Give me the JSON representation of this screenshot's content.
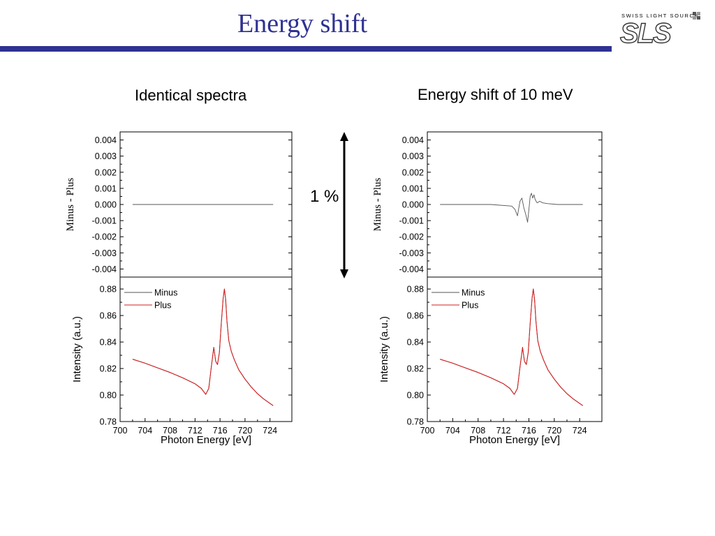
{
  "slide": {
    "title": "Energy shift"
  },
  "logo": {
    "tagline": "SWISS LIGHT SOURCE",
    "wordmark": "SLS"
  },
  "headings": {
    "left": "Identical spectra",
    "right": "Energy shift of 10 meV"
  },
  "scale_marker": {
    "label": "1 %"
  },
  "colors": {
    "title": "#2e3192",
    "minus": "#555555",
    "plus": "#d22020",
    "frame": "#000000"
  },
  "chart_data": [
    {
      "panel": "left-top",
      "type": "line",
      "ylabel": "Minus - Plus",
      "xlim": [
        700,
        727.5
      ],
      "ylim": [
        -0.0045,
        0.0045
      ],
      "yticks": [
        "0.004",
        "0.003",
        "0.002",
        "0.001",
        "0.000",
        "-0.001",
        "-0.002",
        "-0.003",
        "-0.004"
      ],
      "series": [
        {
          "x": [
            702,
            724.5
          ],
          "y": [
            0.0,
            0.0
          ]
        }
      ]
    },
    {
      "panel": "left-bottom",
      "type": "line",
      "xlabel": "Photon Energy [eV]",
      "ylabel": "Intensity (a.u.)",
      "xlim": [
        700,
        727.5
      ],
      "ylim": [
        0.78,
        0.889
      ],
      "xticks": [
        "700",
        "704",
        "708",
        "712",
        "716",
        "720",
        "724"
      ],
      "yticks": [
        "0.88",
        "0.86",
        "0.84",
        "0.82",
        "0.80",
        "0.78"
      ],
      "legend": "top-left",
      "series": [
        {
          "name": "Minus",
          "x": [
            702,
            704,
            706,
            708,
            710,
            712,
            713,
            713.7,
            714.2,
            714.6,
            715.0,
            715.3,
            715.6,
            715.9,
            716.2,
            716.5,
            716.7,
            716.9,
            717.1,
            717.4,
            717.8,
            718.3,
            719.0,
            720.0,
            721.0,
            722.0,
            723.0,
            724.5
          ],
          "y": [
            0.827,
            0.824,
            0.8205,
            0.817,
            0.813,
            0.8085,
            0.805,
            0.8005,
            0.805,
            0.821,
            0.836,
            0.8255,
            0.823,
            0.832,
            0.854,
            0.873,
            0.88,
            0.872,
            0.856,
            0.841,
            0.833,
            0.8265,
            0.819,
            0.812,
            0.806,
            0.801,
            0.797,
            0.792
          ]
        },
        {
          "name": "Plus",
          "x": [
            702,
            704,
            706,
            708,
            710,
            712,
            713,
            713.7,
            714.2,
            714.6,
            715.0,
            715.3,
            715.6,
            715.9,
            716.2,
            716.5,
            716.7,
            716.9,
            717.1,
            717.4,
            717.8,
            718.3,
            719.0,
            720.0,
            721.0,
            722.0,
            723.0,
            724.5
          ],
          "y": [
            0.827,
            0.824,
            0.8205,
            0.817,
            0.813,
            0.8085,
            0.805,
            0.8005,
            0.805,
            0.821,
            0.836,
            0.8255,
            0.823,
            0.832,
            0.854,
            0.873,
            0.88,
            0.872,
            0.856,
            0.841,
            0.833,
            0.8265,
            0.819,
            0.812,
            0.806,
            0.801,
            0.797,
            0.792
          ]
        }
      ]
    },
    {
      "panel": "right-top",
      "type": "line",
      "ylabel": "Minus - Plus",
      "xlim": [
        700,
        727.5
      ],
      "ylim": [
        -0.0045,
        0.0045
      ],
      "yticks": [
        "0.004",
        "0.003",
        "0.002",
        "0.001",
        "0.000",
        "-0.001",
        "-0.002",
        "-0.003",
        "-0.004"
      ],
      "series": [
        {
          "x": [
            702,
            710,
            713.3,
            713.8,
            714.2,
            714.6,
            714.9,
            715.2,
            715.5,
            715.8,
            716.0,
            716.2,
            716.4,
            716.6,
            716.8,
            717.0,
            717.3,
            717.7,
            718.2,
            719.0,
            720.5,
            724.5
          ],
          "y": [
            0.0,
            0.0,
            -0.0001,
            -0.0003,
            -0.0007,
            0.0002,
            0.0004,
            -0.0002,
            -0.0006,
            -0.0011,
            -0.0003,
            0.0005,
            0.0007,
            0.0004,
            0.0006,
            0.0003,
            0.0001,
            0.0002,
            0.0001,
            5e-05,
            0.0,
            0.0
          ]
        }
      ]
    },
    {
      "panel": "right-bottom",
      "type": "line",
      "xlabel": "Photon Energy [eV]",
      "ylabel": "Intensity (a.u.)",
      "xlim": [
        700,
        727.5
      ],
      "ylim": [
        0.78,
        0.889
      ],
      "xticks": [
        "700",
        "704",
        "708",
        "712",
        "716",
        "720",
        "724"
      ],
      "yticks": [
        "0.88",
        "0.86",
        "0.84",
        "0.82",
        "0.80",
        "0.78"
      ],
      "legend": "top-left",
      "series": [
        {
          "name": "Minus",
          "x": [
            702,
            704,
            706,
            708,
            710,
            712,
            713,
            713.7,
            714.2,
            714.6,
            715.0,
            715.3,
            715.6,
            715.9,
            716.2,
            716.5,
            716.7,
            716.9,
            717.1,
            717.4,
            717.8,
            718.3,
            719.0,
            720.0,
            721.0,
            722.0,
            723.0,
            724.5
          ],
          "y": [
            0.827,
            0.824,
            0.8205,
            0.817,
            0.813,
            0.8085,
            0.805,
            0.8005,
            0.805,
            0.821,
            0.836,
            0.8255,
            0.823,
            0.832,
            0.854,
            0.873,
            0.88,
            0.872,
            0.856,
            0.841,
            0.833,
            0.8265,
            0.819,
            0.812,
            0.806,
            0.801,
            0.797,
            0.792
          ]
        },
        {
          "name": "Plus",
          "x": [
            702,
            704,
            706,
            708,
            710,
            712,
            713,
            713.7,
            714.2,
            714.6,
            715.0,
            715.3,
            715.6,
            715.9,
            716.2,
            716.5,
            716.7,
            716.9,
            717.1,
            717.4,
            717.8,
            718.3,
            719.0,
            720.0,
            721.0,
            722.0,
            723.0,
            724.5
          ],
          "y": [
            0.827,
            0.824,
            0.8205,
            0.817,
            0.813,
            0.8085,
            0.805,
            0.8005,
            0.805,
            0.821,
            0.836,
            0.8255,
            0.823,
            0.832,
            0.854,
            0.873,
            0.88,
            0.872,
            0.856,
            0.841,
            0.833,
            0.8265,
            0.819,
            0.812,
            0.806,
            0.801,
            0.797,
            0.792
          ]
        }
      ]
    }
  ]
}
